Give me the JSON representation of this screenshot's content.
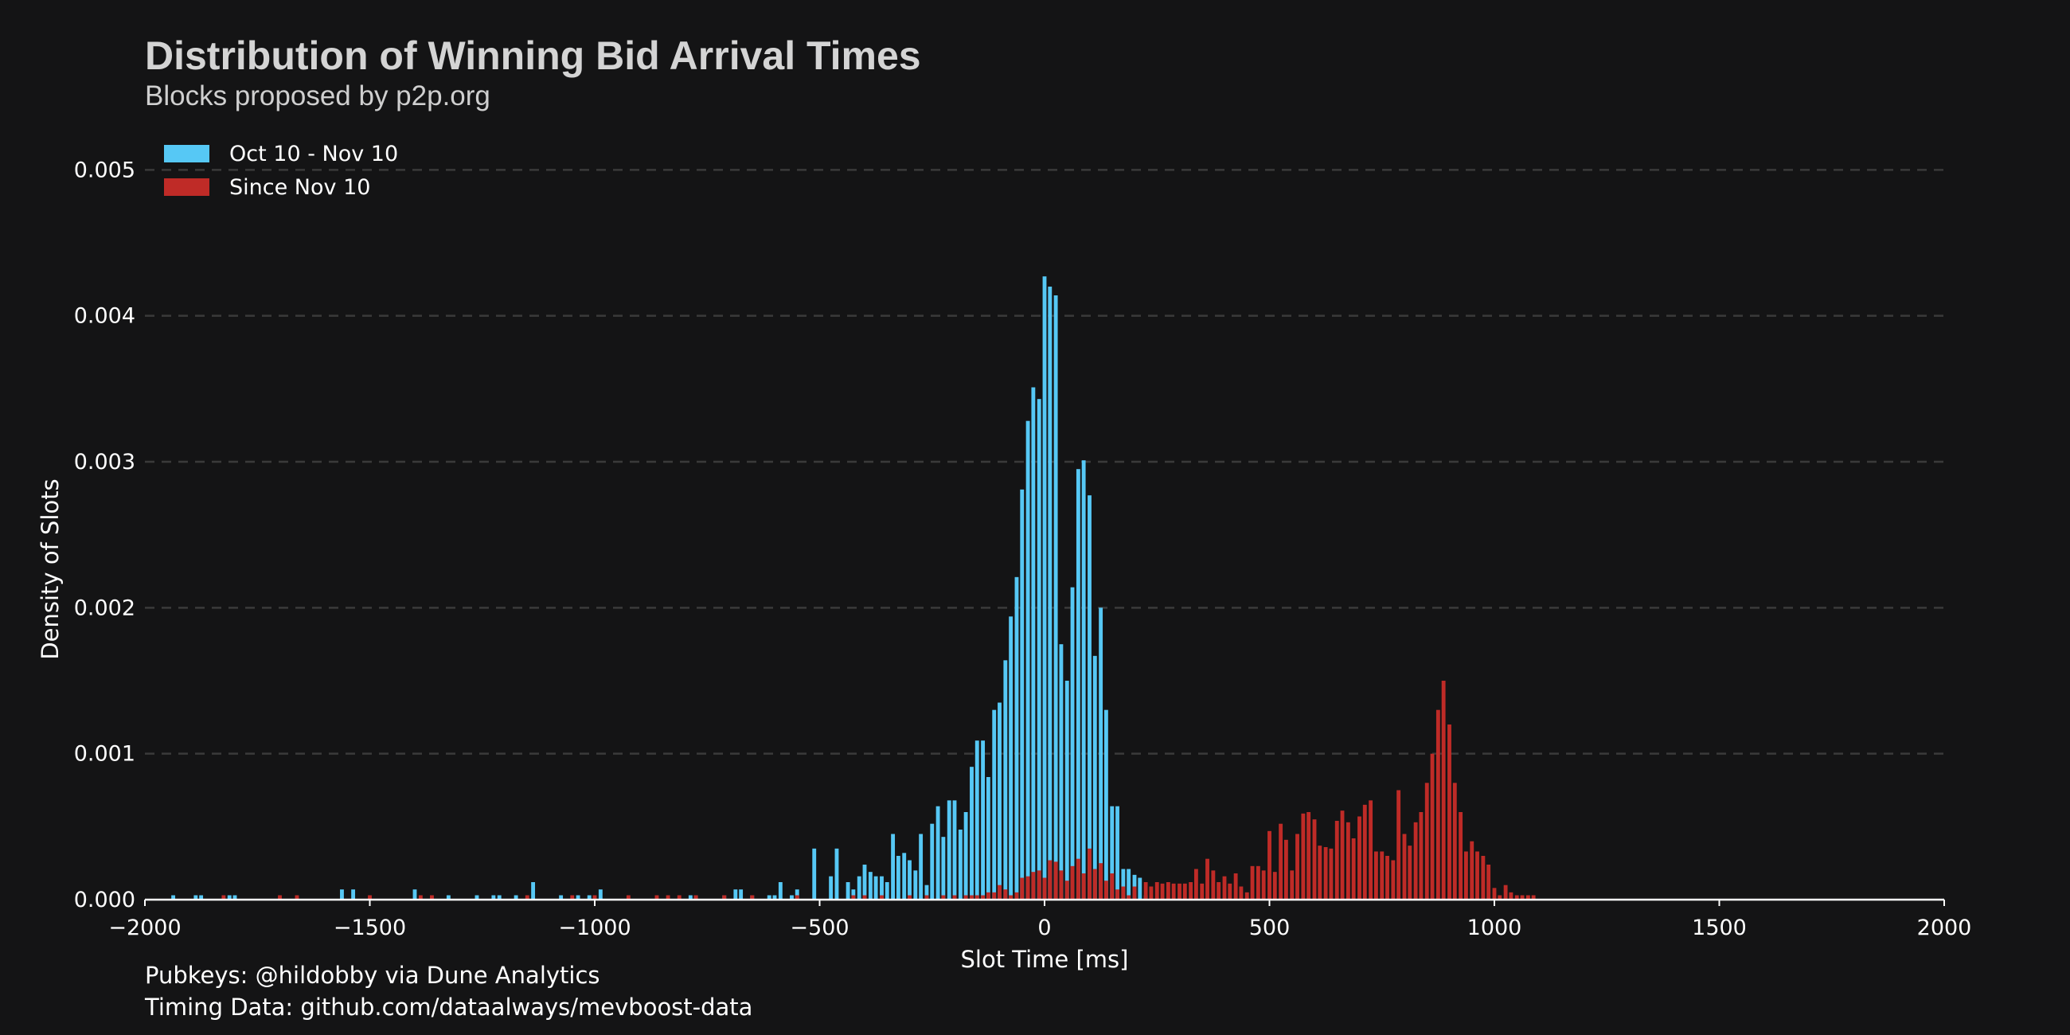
{
  "header": {
    "title": "Distribution of Winning Bid Arrival Times",
    "subtitle": "Blocks proposed by p2p.org"
  },
  "footer": {
    "line1": "Pubkeys: @hildobby via Dune Analytics",
    "line2": "Timing Data: github.com/dataalways/mevboost-data"
  },
  "colors": {
    "background": "#141415",
    "series_blue": "#56c8f5",
    "series_red": "#bf2b27",
    "grid": "#3a3a3a",
    "axis": "#ffffff"
  },
  "chart_data": {
    "type": "bar",
    "title": "Distribution of Winning Bid Arrival Times",
    "subtitle": "Blocks proposed by p2p.org",
    "xlabel": "Slot Time [ms]",
    "ylabel": "Density of Slots",
    "xlim": [
      -2000,
      2000
    ],
    "ylim": [
      0,
      0.0054
    ],
    "xticks": [
      -2000,
      -1500,
      -1000,
      -500,
      0,
      500,
      1000,
      1500,
      2000
    ],
    "xtick_labels": [
      "−2000",
      "−1500",
      "−1000",
      "−500",
      "0",
      "500",
      "1000",
      "1500",
      "2000"
    ],
    "yticks": [
      0,
      0.001,
      0.002,
      0.003,
      0.004,
      0.005
    ],
    "ytick_labels": [
      "0.000",
      "0.001",
      "0.002",
      "0.003",
      "0.004",
      "0.005"
    ],
    "grid": "horizontal dashed",
    "legend_position": "top-left",
    "bin_width_ms": 12.5,
    "series": [
      {
        "name": "Oct 10 - Nov 10",
        "color": "#56c8f5",
        "bins": [
          [
            -1937,
            3e-05
          ],
          [
            -1887,
            3e-05
          ],
          [
            -1875,
            3e-05
          ],
          [
            -1812,
            3e-05
          ],
          [
            -1800,
            3e-05
          ],
          [
            -1562,
            7e-05
          ],
          [
            -1537,
            7e-05
          ],
          [
            -1400,
            7e-05
          ],
          [
            -1325,
            3e-05
          ],
          [
            -1262,
            3e-05
          ],
          [
            -1225,
            3e-05
          ],
          [
            -1212,
            3e-05
          ],
          [
            -1175,
            3e-05
          ],
          [
            -1137,
            0.00012
          ],
          [
            -1075,
            3e-05
          ],
          [
            -1037,
            3e-05
          ],
          [
            -1012,
            3e-05
          ],
          [
            -987,
            7e-05
          ],
          [
            -787,
            3e-05
          ],
          [
            -775,
            3e-05
          ],
          [
            -712,
            3e-05
          ],
          [
            -687,
            7e-05
          ],
          [
            -675,
            7e-05
          ],
          [
            -650,
            3e-05
          ],
          [
            -612,
            3e-05
          ],
          [
            -600,
            3e-05
          ],
          [
            -587,
            0.00012
          ],
          [
            -562,
            3e-05
          ],
          [
            -550,
            7e-05
          ],
          [
            -512,
            0.00035
          ],
          [
            -475,
            0.00016
          ],
          [
            -462,
            0.00035
          ],
          [
            -437,
            0.00012
          ],
          [
            -425,
            7e-05
          ],
          [
            -412,
            0.00016
          ],
          [
            -400,
            0.00024
          ],
          [
            -387,
            0.00019
          ],
          [
            -375,
            0.00016
          ],
          [
            -362,
            0.00016
          ],
          [
            -350,
            0.00012
          ],
          [
            -337,
            0.00045
          ],
          [
            -325,
            0.0003
          ],
          [
            -312,
            0.00032
          ],
          [
            -300,
            0.00027
          ],
          [
            -287,
            0.0002
          ],
          [
            -275,
            0.00045
          ],
          [
            -262,
            0.0001
          ],
          [
            -250,
            0.00052
          ],
          [
            -237,
            0.00064
          ],
          [
            -225,
            0.00043
          ],
          [
            -212,
            0.00068
          ],
          [
            -200,
            0.00068
          ],
          [
            -187,
            0.00048
          ],
          [
            -175,
            0.0006
          ],
          [
            -162,
            0.00091
          ],
          [
            -150,
            0.00109
          ],
          [
            -137,
            0.00109
          ],
          [
            -125,
            0.00084
          ],
          [
            -112,
            0.0013
          ],
          [
            -100,
            0.00135
          ],
          [
            -87,
            0.00164
          ],
          [
            -75,
            0.00194
          ],
          [
            -62,
            0.00221
          ],
          [
            -50,
            0.00281
          ],
          [
            -37,
            0.00328
          ],
          [
            -25,
            0.00351
          ],
          [
            -12,
            0.00343
          ],
          [
            0,
            0.00427
          ],
          [
            12,
            0.0042
          ],
          [
            25,
            0.00414
          ],
          [
            37,
            0.00175
          ],
          [
            50,
            0.0015
          ],
          [
            62,
            0.00214
          ],
          [
            75,
            0.00295
          ],
          [
            87,
            0.00301
          ],
          [
            100,
            0.00277
          ],
          [
            112,
            0.00167
          ],
          [
            125,
            0.002
          ],
          [
            137,
            0.0013
          ],
          [
            150,
            0.00064
          ],
          [
            162,
            0.00064
          ],
          [
            175,
            0.00021
          ],
          [
            187,
            0.00021
          ],
          [
            200,
            0.00017
          ],
          [
            212,
            0.00015
          ],
          [
            225,
            3e-05
          ]
        ]
      },
      {
        "name": "Since Nov 10",
        "color": "#bf2b27",
        "bins": [
          [
            -1825,
            3e-05
          ],
          [
            -1700,
            3e-05
          ],
          [
            -1662,
            3e-05
          ],
          [
            -1500,
            3e-05
          ],
          [
            -1387,
            3e-05
          ],
          [
            -1362,
            3e-05
          ],
          [
            -1150,
            3e-05
          ],
          [
            -1050,
            3e-05
          ],
          [
            -1000,
            3e-05
          ],
          [
            -925,
            3e-05
          ],
          [
            -862,
            3e-05
          ],
          [
            -837,
            3e-05
          ],
          [
            -812,
            3e-05
          ],
          [
            -775,
            3e-05
          ],
          [
            -712,
            3e-05
          ],
          [
            -650,
            3e-05
          ],
          [
            -550,
            3e-05
          ],
          [
            -425,
            3e-05
          ],
          [
            -400,
            3e-05
          ],
          [
            -362,
            3e-05
          ],
          [
            -300,
            3e-05
          ],
          [
            -262,
            3e-05
          ],
          [
            -225,
            3e-05
          ],
          [
            -200,
            3e-05
          ],
          [
            -175,
            3e-05
          ],
          [
            -162,
            3e-05
          ],
          [
            -150,
            3e-05
          ],
          [
            -137,
            3e-05
          ],
          [
            -125,
            5e-05
          ],
          [
            -112,
            5e-05
          ],
          [
            -100,
            0.0001
          ],
          [
            -87,
            7e-05
          ],
          [
            -75,
            3e-05
          ],
          [
            -62,
            5e-05
          ],
          [
            -50,
            0.00015
          ],
          [
            -37,
            0.00016
          ],
          [
            -25,
            0.00019
          ],
          [
            -12,
            0.0002
          ],
          [
            0,
            0.00015
          ],
          [
            12,
            0.00027
          ],
          [
            25,
            0.00026
          ],
          [
            37,
            0.0002
          ],
          [
            50,
            0.00013
          ],
          [
            62,
            0.00023
          ],
          [
            75,
            0.00028
          ],
          [
            87,
            0.00018
          ],
          [
            100,
            0.00035
          ],
          [
            112,
            0.00021
          ],
          [
            125,
            0.00025
          ],
          [
            137,
            0.00013
          ],
          [
            150,
            0.00018
          ],
          [
            162,
            7e-05
          ],
          [
            175,
            9e-05
          ],
          [
            187,
            3e-05
          ],
          [
            200,
            9e-05
          ],
          [
            225,
            0.00012
          ],
          [
            237,
            9e-05
          ],
          [
            250,
            0.00012
          ],
          [
            262,
            0.00011
          ],
          [
            275,
            0.00012
          ],
          [
            287,
            0.00011
          ],
          [
            300,
            0.00011
          ],
          [
            312,
            0.00011
          ],
          [
            325,
            0.00012
          ],
          [
            337,
            0.00021
          ],
          [
            350,
            0.00011
          ],
          [
            362,
            0.00028
          ],
          [
            375,
            0.0002
          ],
          [
            387,
            0.00012
          ],
          [
            400,
            0.00016
          ],
          [
            412,
            0.00011
          ],
          [
            425,
            0.00018
          ],
          [
            437,
            9e-05
          ],
          [
            450,
            5e-05
          ],
          [
            462,
            0.00023
          ],
          [
            475,
            0.00023
          ],
          [
            487,
            0.0002
          ],
          [
            500,
            0.00047
          ],
          [
            512,
            0.00019
          ],
          [
            525,
            0.00052
          ],
          [
            537,
            0.00041
          ],
          [
            550,
            0.0002
          ],
          [
            562,
            0.00045
          ],
          [
            575,
            0.00059
          ],
          [
            587,
            0.0006
          ],
          [
            600,
            0.00055
          ],
          [
            612,
            0.00037
          ],
          [
            625,
            0.00036
          ],
          [
            637,
            0.00035
          ],
          [
            650,
            0.00054
          ],
          [
            662,
            0.00061
          ],
          [
            675,
            0.00053
          ],
          [
            687,
            0.00042
          ],
          [
            700,
            0.00057
          ],
          [
            712,
            0.00065
          ],
          [
            725,
            0.00068
          ],
          [
            737,
            0.00033
          ],
          [
            750,
            0.00033
          ],
          [
            762,
            0.0003
          ],
          [
            775,
            0.00027
          ],
          [
            787,
            0.00075
          ],
          [
            800,
            0.00045
          ],
          [
            812,
            0.00037
          ],
          [
            825,
            0.00053
          ],
          [
            837,
            0.0006
          ],
          [
            850,
            0.0008
          ],
          [
            862,
            0.001
          ],
          [
            875,
            0.0013
          ],
          [
            887,
            0.0015
          ],
          [
            900,
            0.0012
          ],
          [
            912,
            0.0008
          ],
          [
            925,
            0.0006
          ],
          [
            937,
            0.00033
          ],
          [
            950,
            0.0004
          ],
          [
            962,
            0.00033
          ],
          [
            975,
            0.0003
          ],
          [
            987,
            0.00024
          ],
          [
            1000,
            8e-05
          ],
          [
            1012,
            3e-05
          ],
          [
            1025,
            0.0001
          ],
          [
            1037,
            5e-05
          ],
          [
            1050,
            3e-05
          ],
          [
            1062,
            3e-05
          ],
          [
            1075,
            3e-05
          ],
          [
            1087,
            3e-05
          ]
        ]
      }
    ]
  }
}
